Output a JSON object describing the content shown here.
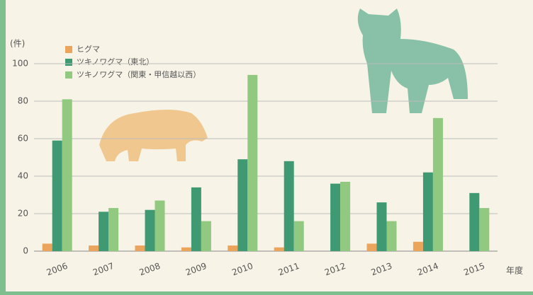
{
  "chart_data": {
    "type": "bar",
    "y_unit": "(件)",
    "x_label": "年度",
    "categories": [
      "2006",
      "2007",
      "2008",
      "2009",
      "2010",
      "2011",
      "2012",
      "2013",
      "2014",
      "2015"
    ],
    "series": [
      {
        "name": "ヒグマ",
        "color": "#eaa45c",
        "values": [
          4,
          3,
          3,
          2,
          3,
          2,
          0,
          4,
          5,
          0
        ]
      },
      {
        "name": "ツキノワグマ（東北）",
        "color": "#3f9a73",
        "values": [
          59,
          21,
          22,
          34,
          49,
          48,
          36,
          26,
          42,
          31
        ]
      },
      {
        "name": "ツキノワグマ（関東・甲信越以西）",
        "color": "#90c97f",
        "values": [
          81,
          23,
          27,
          16,
          94,
          16,
          37,
          16,
          71,
          23
        ]
      }
    ],
    "ylim": [
      0,
      100
    ],
    "yticks": [
      0,
      20,
      40,
      60,
      80,
      100
    ],
    "grid": true
  }
}
